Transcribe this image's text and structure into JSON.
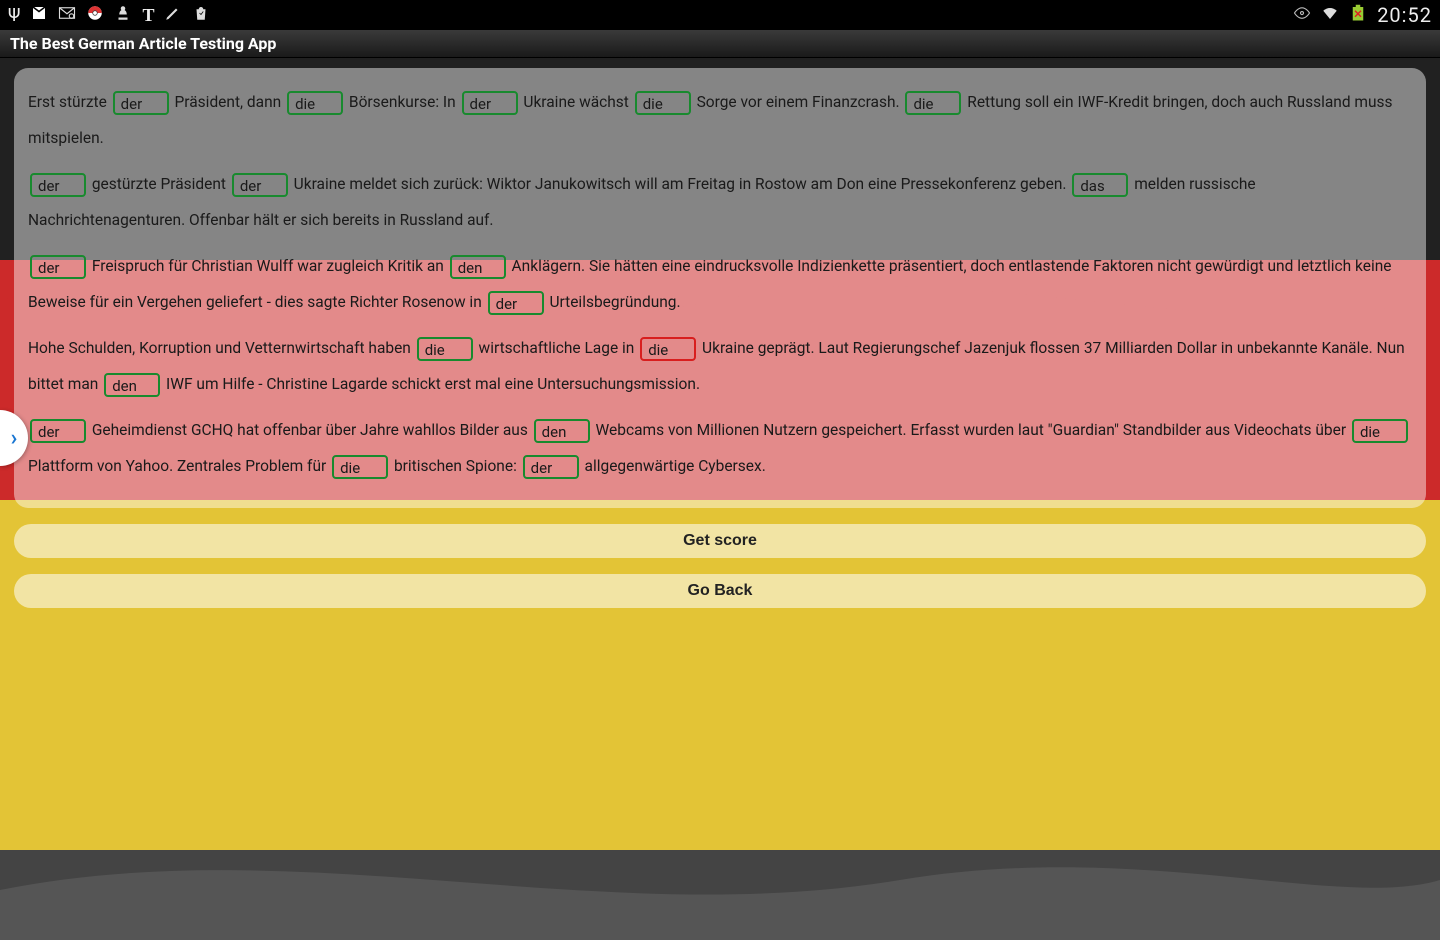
{
  "statusbar": {
    "clock": "20:52",
    "left_icons": [
      "usb",
      "gmail",
      "mail-at",
      "poke",
      "chess",
      "nyt",
      "pencil",
      "bag"
    ],
    "right_icons": [
      "eye",
      "wifi",
      "battery-x"
    ]
  },
  "titlebar": {
    "title": "The Best German Article Testing App"
  },
  "drawer_chevron": "›",
  "colors": {
    "correct_border": "#188a2e",
    "wrong_border": "#d81e1e",
    "flag_black": "#212121",
    "flag_red": "#cc2a2a",
    "flag_gold": "#e3c436"
  },
  "buttons": {
    "get_score": "Get score",
    "go_back": "Go Back"
  },
  "paragraphs": [
    {
      "segments": [
        {
          "t": "Erst stürzte "
        },
        {
          "blank": "der",
          "state": "correct"
        },
        {
          "t": " Präsident, dann "
        },
        {
          "blank": "die",
          "state": "correct"
        },
        {
          "t": " Börsenkurse: In "
        },
        {
          "blank": "der",
          "state": "correct"
        },
        {
          "t": " Ukraine wächst "
        },
        {
          "blank": "die",
          "state": "correct"
        },
        {
          "t": " Sorge vor einem Finanzcrash. "
        },
        {
          "blank": "die",
          "state": "correct"
        },
        {
          "t": " Rettung soll ein IWF-Kredit bringen, doch auch Russland muss mitspielen."
        }
      ]
    },
    {
      "segments": [
        {
          "blank": "der",
          "state": "correct"
        },
        {
          "t": " gestürzte Präsident "
        },
        {
          "blank": "der",
          "state": "correct"
        },
        {
          "t": " Ukraine meldet sich zurück: Wiktor Janukowitsch will am Freitag in Rostow am Don eine Pressekonferenz geben. "
        },
        {
          "blank": "das",
          "state": "correct"
        },
        {
          "t": " melden russische Nachrichtenagenturen. Offenbar hält er sich bereits in Russland auf."
        }
      ]
    },
    {
      "segments": [
        {
          "blank": "der",
          "state": "correct"
        },
        {
          "t": " Freispruch für Christian Wulff war zugleich Kritik an "
        },
        {
          "blank": "den",
          "state": "correct"
        },
        {
          "t": " Anklägern. Sie hätten eine eindrucksvolle Indizienkette präsentiert, doch entlastende Faktoren nicht gewürdigt und letztlich keine Beweise für ein Vergehen geliefert - dies sagte Richter Rosenow in "
        },
        {
          "blank": "der",
          "state": "correct"
        },
        {
          "t": " Urteilsbegründung."
        }
      ]
    },
    {
      "segments": [
        {
          "t": "Hohe Schulden, Korruption und Vetternwirtschaft haben "
        },
        {
          "blank": "die",
          "state": "correct"
        },
        {
          "t": " wirtschaftliche Lage in "
        },
        {
          "blank": "die",
          "state": "wrong"
        },
        {
          "t": " Ukraine geprägt. Laut Regierungschef Jazenjuk flossen 37 Milliarden Dollar in unbekannte Kanäle. Nun bittet man "
        },
        {
          "blank": "den",
          "state": "correct"
        },
        {
          "t": " IWF um Hilfe - Christine Lagarde schickt erst mal eine Untersuchungsmission."
        }
      ]
    },
    {
      "segments": [
        {
          "blank": "der",
          "state": "correct"
        },
        {
          "t": " Geheimdienst GCHQ hat offenbar über Jahre wahllos Bilder aus "
        },
        {
          "blank": "den",
          "state": "correct"
        },
        {
          "t": " Webcams von Millionen Nutzern gespeichert. Erfasst wurden laut \"Guardian\" Standbilder aus Videochats über "
        },
        {
          "blank": "die",
          "state": "correct"
        },
        {
          "t": " Plattform von Yahoo. Zentrales Problem für "
        },
        {
          "blank": "die",
          "state": "correct"
        },
        {
          "t": " britischen Spione: "
        },
        {
          "blank": "der",
          "state": "correct"
        },
        {
          "t": " allgegenwärtige Cybersex."
        }
      ]
    }
  ]
}
